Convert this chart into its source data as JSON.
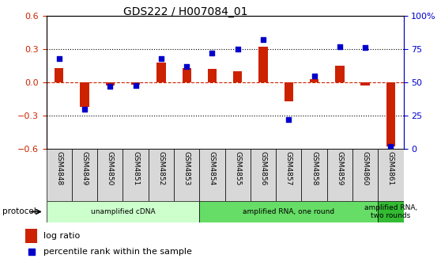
{
  "title": "GDS222 / H007084_01",
  "samples": [
    "GSM4848",
    "GSM4849",
    "GSM4850",
    "GSM4851",
    "GSM4852",
    "GSM4853",
    "GSM4854",
    "GSM4855",
    "GSM4856",
    "GSM4857",
    "GSM4858",
    "GSM4859",
    "GSM4860",
    "GSM4861"
  ],
  "log_ratio": [
    0.13,
    -0.22,
    -0.03,
    -0.02,
    0.18,
    0.13,
    0.12,
    0.1,
    0.32,
    -0.17,
    0.03,
    0.15,
    -0.03,
    -0.58
  ],
  "percentile_rank": [
    68,
    30,
    47,
    48,
    68,
    62,
    72,
    75,
    82,
    22,
    55,
    77,
    76,
    2
  ],
  "ylim_left": [
    -0.6,
    0.6
  ],
  "ylim_right": [
    0,
    100
  ],
  "yticks_left": [
    -0.6,
    -0.3,
    0.0,
    0.3,
    0.6
  ],
  "yticks_right": [
    0,
    25,
    50,
    75,
    100
  ],
  "ytick_labels_right": [
    "0",
    "25",
    "50",
    "75",
    "100%"
  ],
  "bar_color": "#cc2200",
  "dot_color": "#0000cc",
  "protocol_groups": [
    {
      "label": "unamplified cDNA",
      "start": 0,
      "end": 5,
      "color": "#ccffcc"
    },
    {
      "label": "amplified RNA, one round",
      "start": 6,
      "end": 12,
      "color": "#66dd66"
    },
    {
      "label": "amplified RNA,\ntwo rounds",
      "start": 13,
      "end": 13,
      "color": "#33bb33"
    }
  ],
  "legend_items": [
    {
      "label": "log ratio",
      "color": "#cc2200"
    },
    {
      "label": "percentile rank within the sample",
      "color": "#0000cc"
    }
  ],
  "bar_width": 0.35,
  "dot_size": 25,
  "protocol_label": "protocol",
  "background_color": "#ffffff",
  "axis_left_color": "#cc2200",
  "axis_right_color": "#0000cc",
  "sample_box_color": "#d8d8d8"
}
